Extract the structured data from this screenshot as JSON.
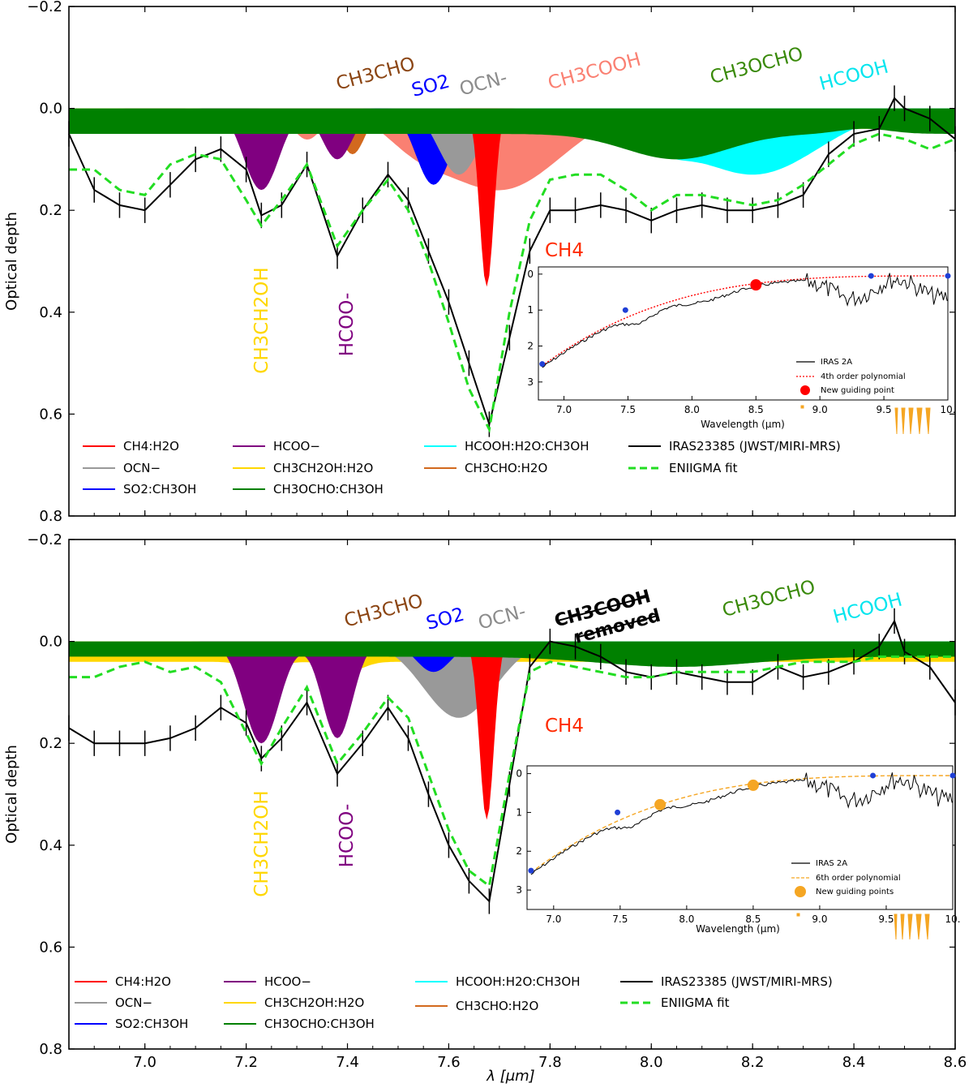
{
  "chart_data": [
    {
      "type": "area",
      "panel": "top",
      "xlim": [
        6.85,
        8.6
      ],
      "ylim": [
        0.8,
        -0.2
      ],
      "ylabel": "Optical depth",
      "xticks": [
        "7.0",
        "7.2",
        "7.4",
        "7.6",
        "7.8",
        "8.0",
        "8.2",
        "8.4",
        "8.6"
      ],
      "yticks": [
        "−0.2",
        "0.0",
        "0.2",
        "0.4",
        "0.6",
        "0.8"
      ],
      "components": [
        {
          "name": "CH3CH2OH:H2O",
          "color": "#ffd700",
          "center": 7.23,
          "depth": 0.04
        },
        {
          "name": "CH3CHO:H2O",
          "color": "#d2691e",
          "center": 7.41,
          "depth": 0.07
        },
        {
          "name": "HCOO-",
          "color": "#800080",
          "center": 7.23,
          "depth": 0.16
        },
        {
          "name": "CH3COOH",
          "color": "#fa8072",
          "center": 7.66,
          "depth": 0.16
        },
        {
          "name": "SO2:CH3OH",
          "color": "#0000ff",
          "center": 7.58,
          "depth": 0.15
        },
        {
          "name": "OCN-",
          "color": "#999999",
          "center": 7.62,
          "depth": 0.13
        },
        {
          "name": "CH4:H2O",
          "color": "#ff0000",
          "center": 7.675,
          "depth": 0.35
        },
        {
          "name": "HCOOH:H2O:CH3OH",
          "color": "#00ffff",
          "center": 8.25,
          "depth": 0.13
        },
        {
          "name": "CH3OCHO:CH3OH",
          "color": "#008000",
          "center": 8.05,
          "depth": 0.09
        }
      ],
      "observed": {
        "name": "IRAS23385 (JWST/MIRI-MRS)",
        "x": [
          6.85,
          6.9,
          6.95,
          7.0,
          7.05,
          7.1,
          7.15,
          7.2,
          7.23,
          7.27,
          7.32,
          7.38,
          7.43,
          7.48,
          7.52,
          7.56,
          7.6,
          7.64,
          7.68,
          7.72,
          7.76,
          7.8,
          7.85,
          7.9,
          7.95,
          8.0,
          8.05,
          8.1,
          8.15,
          8.2,
          8.25,
          8.3,
          8.35,
          8.4,
          8.45,
          8.48,
          8.5,
          8.55,
          8.6
        ],
        "y": [
          0.05,
          0.16,
          0.19,
          0.2,
          0.15,
          0.1,
          0.08,
          0.12,
          0.21,
          0.19,
          0.11,
          0.29,
          0.2,
          0.13,
          0.18,
          0.28,
          0.38,
          0.5,
          0.62,
          0.45,
          0.28,
          0.2,
          0.2,
          0.19,
          0.2,
          0.22,
          0.2,
          0.19,
          0.2,
          0.2,
          0.19,
          0.17,
          0.09,
          0.05,
          0.04,
          -0.02,
          0.0,
          0.02,
          0.06
        ]
      },
      "fit": {
        "name": "ENIIGMA fit",
        "x": [
          6.85,
          6.9,
          6.95,
          7.0,
          7.05,
          7.1,
          7.15,
          7.2,
          7.23,
          7.27,
          7.32,
          7.38,
          7.43,
          7.48,
          7.52,
          7.56,
          7.6,
          7.64,
          7.68,
          7.72,
          7.76,
          7.8,
          7.85,
          7.9,
          7.95,
          8.0,
          8.05,
          8.1,
          8.15,
          8.2,
          8.25,
          8.3,
          8.35,
          8.4,
          8.45,
          8.5,
          8.55,
          8.6
        ],
        "y": [
          0.12,
          0.12,
          0.16,
          0.17,
          0.11,
          0.09,
          0.1,
          0.18,
          0.23,
          0.18,
          0.11,
          0.27,
          0.2,
          0.14,
          0.2,
          0.3,
          0.42,
          0.55,
          0.63,
          0.4,
          0.22,
          0.14,
          0.13,
          0.13,
          0.16,
          0.2,
          0.17,
          0.17,
          0.18,
          0.19,
          0.18,
          0.15,
          0.11,
          0.07,
          0.05,
          0.06,
          0.08,
          0.06
        ]
      },
      "labels": {
        "ch3cho": "CH3CHO",
        "so2": "SO2",
        "ocn": "OCN-",
        "ch3cooh": "CH3COOH",
        "ch3ocho": "CH3OCHO",
        "hcooh": "HCOOH",
        "ch4": "CH4",
        "ch3ch2oh": "CH3CH2OH",
        "hcoo": "HCOO-"
      },
      "legend": {
        "position": "lower-left",
        "entries": [
          "CH4:H2O",
          "OCN−",
          "SO2:CH3OH",
          "HCOO−",
          "CH3CH2OH:H2O",
          "CH3OCHO:CH3OH",
          "HCOOH:H2O:CH3OH",
          "CH3CHO:H2O",
          "IRAS23385 (JWST/MIRI-MRS)",
          "ENIIGMA fit"
        ]
      },
      "inset": {
        "xlabel": "Wavelength (μm)",
        "xlim": [
          6.8,
          10.0
        ],
        "ylim": [
          3.5,
          -0.2
        ],
        "xticks": [
          "7.0",
          "7.5",
          "8.0",
          "8.5",
          "9.0",
          "9.5",
          "10."
        ],
        "yticks": [
          "0",
          "1",
          "2",
          "3"
        ],
        "legend": [
          "IRAS 2A",
          "4th order polynomial",
          "New guiding point"
        ],
        "curve_color": "#ff0000",
        "point_color": "#ff0000",
        "guide_points": [
          {
            "x": 8.5,
            "y": 0.3
          }
        ],
        "blue_points": [
          {
            "x": 6.83,
            "y": 2.5
          },
          {
            "x": 7.48,
            "y": 1.0
          },
          {
            "x": 9.4,
            "y": 0.05
          },
          {
            "x": 10.0,
            "y": 0.05
          }
        ]
      }
    },
    {
      "type": "area",
      "panel": "bottom",
      "xlim": [
        6.85,
        8.6
      ],
      "ylim": [
        0.8,
        -0.2
      ],
      "xlabel": "λ [μm]",
      "ylabel": "Optical depth",
      "xticks": [
        "7.0",
        "7.2",
        "7.4",
        "7.6",
        "7.8",
        "8.0",
        "8.2",
        "8.4",
        "8.6"
      ],
      "yticks": [
        "−0.2",
        "0.0",
        "0.2",
        "0.4",
        "0.6",
        "0.8"
      ],
      "components": [
        {
          "name": "CH3CH2OH:H2O",
          "color": "#ffd700",
          "center": 7.23,
          "depth": 0.04
        },
        {
          "name": "CH3CHO:H2O",
          "color": "#d2691e",
          "center": 7.41,
          "depth": 0.05
        },
        {
          "name": "HCOO-",
          "color": "#800080",
          "center": 7.23,
          "depth": 0.2
        },
        {
          "name": "OCN-",
          "color": "#999999",
          "center": 7.62,
          "depth": 0.15
        },
        {
          "name": "SO2:CH3OH",
          "color": "#0000ff",
          "center": 7.57,
          "depth": 0.06
        },
        {
          "name": "CH4:H2O",
          "color": "#ff0000",
          "center": 7.675,
          "depth": 0.35
        },
        {
          "name": "HCOOH:H2O:CH3OH",
          "color": "#00ffff",
          "center": 8.2,
          "depth": 0.05
        },
        {
          "name": "CH3OCHO:CH3OH",
          "color": "#008000",
          "center": 8.05,
          "depth": 0.05
        }
      ],
      "observed": {
        "name": "IRAS23385 (JWST/MIRI-MRS)",
        "x": [
          6.85,
          6.9,
          6.95,
          7.0,
          7.05,
          7.1,
          7.15,
          7.2,
          7.23,
          7.27,
          7.32,
          7.38,
          7.43,
          7.48,
          7.52,
          7.56,
          7.6,
          7.64,
          7.68,
          7.72,
          7.76,
          7.8,
          7.85,
          7.9,
          7.95,
          8.0,
          8.05,
          8.1,
          8.15,
          8.2,
          8.25,
          8.3,
          8.35,
          8.4,
          8.45,
          8.48,
          8.5,
          8.55,
          8.6
        ],
        "y": [
          0.17,
          0.2,
          0.2,
          0.2,
          0.19,
          0.17,
          0.13,
          0.16,
          0.23,
          0.19,
          0.12,
          0.26,
          0.2,
          0.13,
          0.19,
          0.3,
          0.4,
          0.47,
          0.51,
          0.28,
          0.05,
          0.0,
          0.01,
          0.03,
          0.06,
          0.07,
          0.06,
          0.07,
          0.08,
          0.08,
          0.05,
          0.07,
          0.06,
          0.04,
          0.01,
          -0.04,
          0.02,
          0.05,
          0.12
        ]
      },
      "fit": {
        "name": "ENIIGMA fit",
        "x": [
          6.85,
          6.9,
          6.95,
          7.0,
          7.05,
          7.1,
          7.15,
          7.2,
          7.23,
          7.27,
          7.32,
          7.38,
          7.43,
          7.48,
          7.52,
          7.56,
          7.6,
          7.64,
          7.68,
          7.72,
          7.76,
          7.8,
          7.85,
          7.9,
          7.95,
          8.0,
          8.05,
          8.1,
          8.15,
          8.2,
          8.25,
          8.3,
          8.35,
          8.4,
          8.45,
          8.5,
          8.55,
          8.6
        ],
        "y": [
          0.07,
          0.07,
          0.05,
          0.04,
          0.06,
          0.05,
          0.08,
          0.18,
          0.24,
          0.17,
          0.09,
          0.24,
          0.18,
          0.11,
          0.15,
          0.26,
          0.37,
          0.45,
          0.48,
          0.26,
          0.06,
          0.04,
          0.05,
          0.06,
          0.07,
          0.07,
          0.06,
          0.06,
          0.06,
          0.06,
          0.05,
          0.04,
          0.04,
          0.04,
          0.03,
          0.03,
          0.03,
          0.03
        ]
      },
      "labels": {
        "ch3cho": "CH3CHO",
        "so2": "SO2",
        "ocn": "OCN-",
        "ch3cooh": "CH3COOH",
        "removed": "removed",
        "ch3ocho": "CH3OCHO",
        "hcooh": "HCOOH",
        "ch4": "CH4",
        "ch3ch2oh": "CH3CH2OH",
        "hcoo": "HCOO-"
      },
      "legend": {
        "position": "lower-left",
        "entries": [
          "CH4:H2O",
          "OCN−",
          "SO2:CH3OH",
          "HCOO−",
          "CH3CH2OH:H2O",
          "CH3OCHO:CH3OH",
          "HCOOH:H2O:CH3OH",
          "CH3CHO:H2O",
          "IRAS23385 (JWST/MIRI-MRS)",
          "ENIIGMA fit"
        ]
      },
      "inset": {
        "xlabel": "Wavelength (μm)",
        "xlim": [
          6.8,
          10.0
        ],
        "ylim": [
          3.5,
          -0.2
        ],
        "xticks": [
          "7.0",
          "7.5",
          "8.0",
          "8.5",
          "9.0",
          "9.5",
          "10."
        ],
        "yticks": [
          "0",
          "1",
          "2",
          "3"
        ],
        "legend": [
          "IRAS 2A",
          "6th order polynomial",
          "New guiding points"
        ],
        "curve_color": "#f5a623",
        "point_color": "#f5a623",
        "guide_points": [
          {
            "x": 7.8,
            "y": 0.8
          },
          {
            "x": 8.5,
            "y": 0.3
          }
        ],
        "blue_points": [
          {
            "x": 6.83,
            "y": 2.5
          },
          {
            "x": 7.48,
            "y": 1.0
          },
          {
            "x": 9.4,
            "y": 0.05
          },
          {
            "x": 10.0,
            "y": 0.05
          }
        ]
      }
    }
  ]
}
